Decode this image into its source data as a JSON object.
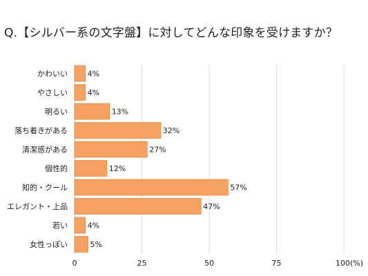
{
  "chart_data": {
    "type": "bar",
    "orientation": "horizontal",
    "title": "Q.【シルバー系の文字盤】に対してどんな印象を受けますか？",
    "categories": [
      "かわいい",
      "やさしい",
      "明るい",
      "落ち着きがある",
      "清潔感がある",
      "個性的",
      "知的・クール",
      "エレガント・上品",
      "若い",
      "女性っぽい"
    ],
    "values": [
      4,
      4,
      13,
      32,
      27,
      12,
      57,
      47,
      4,
      5
    ],
    "value_labels": [
      "4%",
      "4%",
      "13%",
      "32%",
      "27%",
      "12%",
      "57%",
      "47%",
      "4%",
      "5%"
    ],
    "xlim": [
      0,
      100
    ],
    "x_ticks": [
      0,
      25,
      50,
      75,
      100
    ],
    "x_tick_labels": [
      "0",
      "25",
      "50",
      "75",
      "100(%)"
    ],
    "grid": true,
    "colors": {
      "bar": "#F5A162",
      "bar_edge": "#E08A48",
      "grid": "#D9D9D9"
    }
  }
}
